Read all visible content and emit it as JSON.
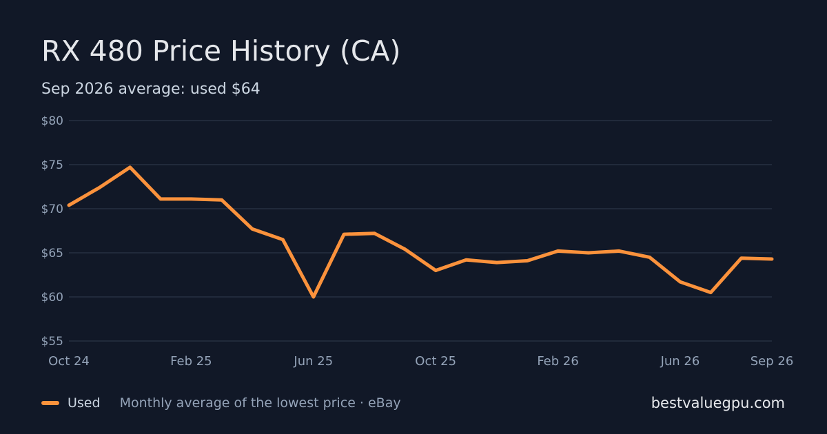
{
  "header": {
    "title": "RX 480 Price History (CA)",
    "subtitle": "Sep 2026 average: used $64"
  },
  "chart_data": {
    "type": "line",
    "x": [
      "Oct 24",
      "Nov 24",
      "Dec 24",
      "Jan 25",
      "Feb 25",
      "Mar 25",
      "Apr 25",
      "May 25",
      "Jun 25",
      "Jul 25",
      "Aug 25",
      "Sep 25",
      "Oct 25",
      "Nov 25",
      "Dec 25",
      "Jan 26",
      "Feb 26",
      "Mar 26",
      "Apr 26",
      "May 26",
      "Jun 26",
      "Jul 26",
      "Aug 26",
      "Sep 26"
    ],
    "x_ticks": [
      "Oct 24",
      "Feb 25",
      "Jun 25",
      "Oct 25",
      "Feb 26",
      "Jun 26",
      "Sep 26"
    ],
    "series": [
      {
        "name": "Used",
        "color": "#fb923c",
        "values": [
          70.4,
          72.4,
          74.7,
          71.1,
          71.1,
          71.0,
          67.7,
          66.5,
          60.0,
          67.1,
          67.2,
          65.4,
          63.0,
          64.2,
          63.9,
          64.1,
          65.2,
          65.0,
          65.2,
          64.5,
          61.7,
          60.5,
          64.4,
          64.3
        ]
      }
    ],
    "ylim": [
      55,
      80
    ],
    "y_ticks": [
      55,
      60,
      65,
      70,
      75,
      80
    ],
    "y_tick_labels": [
      "$55",
      "$60",
      "$65",
      "$70",
      "$75",
      "$80"
    ],
    "grid": true,
    "legend_position": "bottom-left"
  },
  "footer": {
    "legend_label": "Used",
    "note": "Monthly average of the lowest price · eBay",
    "site": "bestvaluegpu.com"
  }
}
